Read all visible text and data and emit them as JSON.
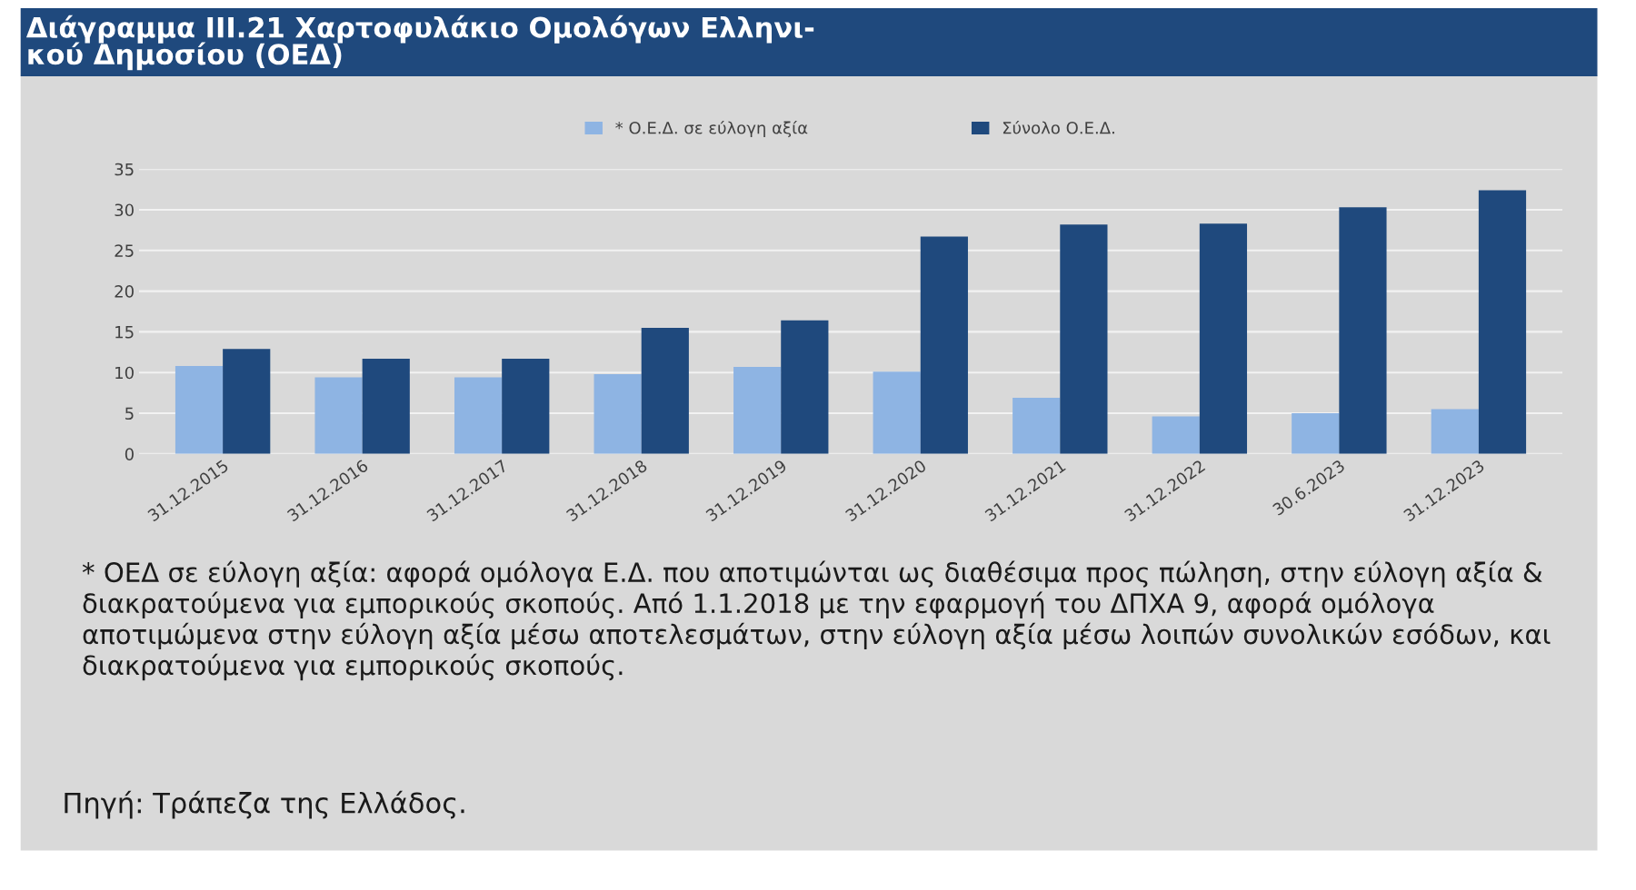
{
  "chart_data": {
    "type": "bar",
    "title": "Διάγραμμα ΙΙΙ.21 Χαρτοφυλάκιο Ομολόγων Ελληνι-\nκού Δημοσίου (ΟΕΔ)",
    "categories": [
      "31.12.2015",
      "31.12.2016",
      "31.12.2017",
      "31.12.2018",
      "31.12.2019",
      "31.12.2020",
      "31.12.2021",
      "31.12.2022",
      "30.6.2023",
      "31.12.2023"
    ],
    "series": [
      {
        "name": "* Ο.Ε.Δ. σε εύλογη αξία",
        "color": "#8eb4e3",
        "values": [
          10.8,
          9.4,
          9.4,
          9.8,
          10.7,
          10.1,
          6.9,
          4.6,
          5.0,
          5.5
        ]
      },
      {
        "name": "Σύνολο Ο.Ε.Δ.",
        "color": "#1f497d",
        "values": [
          12.9,
          11.7,
          11.7,
          15.5,
          16.4,
          26.7,
          28.2,
          28.3,
          30.3,
          32.4
        ]
      }
    ],
    "ylim": [
      0,
      35
    ],
    "yticks": [
      0,
      5,
      10,
      15,
      20,
      25,
      30,
      35
    ],
    "grid": "y",
    "legend": "top",
    "annotations": [
      "* ΟΕΔ σε εύλογη αξία: αφορά ομόλογα Ε.Δ. που αποτιμώνται ως διαθέσιμα προς πώληση, στην εύλογη αξία & διακρατούμενα για εμπορικούς σκοπούς. Από 1.1.2018 με την εφαρμογή του ΔΠΧΑ 9, αφορά ομόλογα αποτιμώμενα στην εύλογη αξία μέσω αποτελεσμάτων, στην εύλογη αξία μέσω λοιπών συνολικών εσόδων, και διακρατούμενα για εμπορικούς σκοπούς.",
      "Πηγή: Τράπεζα της Ελλάδος."
    ]
  }
}
